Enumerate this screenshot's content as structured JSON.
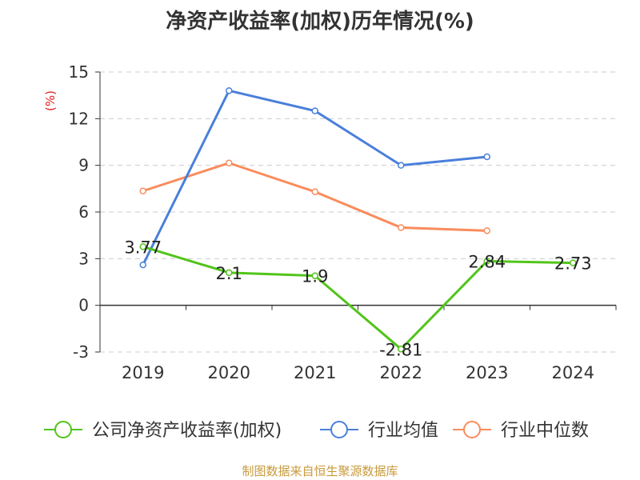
{
  "chart_data": {
    "type": "line",
    "title": "净资产收益率(加权)历年情况(%)",
    "ylabel": "(%)",
    "xlabel": "",
    "categories": [
      "2019",
      "2020",
      "2021",
      "2022",
      "2023",
      "2024"
    ],
    "ylim": [
      -3,
      15
    ],
    "yticks": [
      -3,
      0,
      3,
      6,
      9,
      12,
      15
    ],
    "grid": true,
    "legend_position": "bottom",
    "series": [
      {
        "name": "公司净资产收益率(加权)",
        "color": "#52c41a",
        "values": [
          3.77,
          2.1,
          1.9,
          -2.81,
          2.84,
          2.73
        ],
        "labels": [
          "3.77",
          "2.1",
          "1.9",
          "-2.81",
          "2.84",
          "2.73"
        ]
      },
      {
        "name": "行业均值",
        "color": "#4a7fdb",
        "values": [
          2.6,
          13.8,
          12.5,
          9.0,
          9.55,
          null
        ]
      },
      {
        "name": "行业中位数",
        "color": "#f98c5c",
        "values": [
          7.35,
          9.15,
          7.3,
          5.0,
          4.8,
          null
        ]
      }
    ]
  },
  "ylabel_color": "#e02020",
  "source_note": "制图数据来自恒生聚源数据库"
}
